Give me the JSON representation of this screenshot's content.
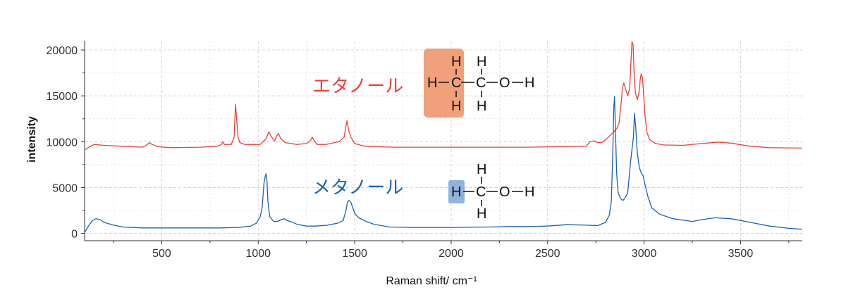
{
  "chart_data": {
    "type": "line",
    "title": "",
    "xlabel": "Raman shift/ cm⁻¹",
    "ylabel": "intensity",
    "xlim": [
      100,
      3820
    ],
    "ylim": [
      -800,
      21000
    ],
    "xticks": [
      500,
      1000,
      1500,
      2000,
      2500,
      3000,
      3500
    ],
    "yticks": [
      0,
      5000,
      10000,
      15000,
      20000
    ],
    "xtick_labels": [
      "500",
      "1000",
      "1500",
      "2000",
      "2500",
      "3000",
      "3500"
    ],
    "ytick_labels": [
      "0",
      "5000",
      "10000",
      "15000",
      "20000"
    ],
    "grid": true,
    "series": [
      {
        "name": "エタノール",
        "color": "#e8423c",
        "points": [
          [
            100,
            9100
          ],
          [
            130,
            9500
          ],
          [
            150,
            9700
          ],
          [
            200,
            9600
          ],
          [
            300,
            9500
          ],
          [
            400,
            9400
          ],
          [
            420,
            9600
          ],
          [
            435,
            9900
          ],
          [
            450,
            9700
          ],
          [
            480,
            9450
          ],
          [
            550,
            9350
          ],
          [
            700,
            9400
          ],
          [
            790,
            9500
          ],
          [
            810,
            9700
          ],
          [
            815,
            10000
          ],
          [
            825,
            9700
          ],
          [
            860,
            9700
          ],
          [
            875,
            10500
          ],
          [
            882,
            14100
          ],
          [
            888,
            12500
          ],
          [
            895,
            10500
          ],
          [
            905,
            9900
          ],
          [
            930,
            9700
          ],
          [
            1010,
            9700
          ],
          [
            1040,
            10300
          ],
          [
            1055,
            11100
          ],
          [
            1070,
            10500
          ],
          [
            1085,
            10100
          ],
          [
            1095,
            10600
          ],
          [
            1105,
            10900
          ],
          [
            1115,
            10400
          ],
          [
            1140,
            9900
          ],
          [
            1200,
            9700
          ],
          [
            1250,
            9800
          ],
          [
            1270,
            10100
          ],
          [
            1280,
            10500
          ],
          [
            1290,
            10100
          ],
          [
            1305,
            9700
          ],
          [
            1350,
            9700
          ],
          [
            1420,
            10000
          ],
          [
            1445,
            10500
          ],
          [
            1452,
            11400
          ],
          [
            1460,
            12300
          ],
          [
            1468,
            11300
          ],
          [
            1480,
            10500
          ],
          [
            1500,
            9800
          ],
          [
            1550,
            9500
          ],
          [
            1700,
            9400
          ],
          [
            2000,
            9400
          ],
          [
            2400,
            9400
          ],
          [
            2700,
            9500
          ],
          [
            2720,
            10000
          ],
          [
            2740,
            10100
          ],
          [
            2760,
            9900
          ],
          [
            2780,
            9900
          ],
          [
            2800,
            10200
          ],
          [
            2840,
            11000
          ],
          [
            2860,
            11500
          ],
          [
            2870,
            12000
          ],
          [
            2880,
            14000
          ],
          [
            2888,
            15900
          ],
          [
            2895,
            16400
          ],
          [
            2905,
            15700
          ],
          [
            2915,
            15000
          ],
          [
            2925,
            15800
          ],
          [
            2930,
            17800
          ],
          [
            2937,
            20900
          ],
          [
            2943,
            20600
          ],
          [
            2948,
            17500
          ],
          [
            2955,
            15300
          ],
          [
            2965,
            14600
          ],
          [
            2975,
            15500
          ],
          [
            2980,
            16800
          ],
          [
            2985,
            17400
          ],
          [
            2992,
            16900
          ],
          [
            2998,
            15000
          ],
          [
            3005,
            12800
          ],
          [
            3015,
            11000
          ],
          [
            3030,
            10200
          ],
          [
            3060,
            9800
          ],
          [
            3100,
            9650
          ],
          [
            3200,
            9600
          ],
          [
            3300,
            9800
          ],
          [
            3380,
            9950
          ],
          [
            3450,
            9850
          ],
          [
            3550,
            9500
          ],
          [
            3650,
            9350
          ],
          [
            3820,
            9300
          ]
        ]
      },
      {
        "name": "メタノール",
        "color": "#1a64b0",
        "points": [
          [
            100,
            100
          ],
          [
            120,
            800
          ],
          [
            140,
            1400
          ],
          [
            160,
            1600
          ],
          [
            180,
            1500
          ],
          [
            200,
            1200
          ],
          [
            250,
            900
          ],
          [
            300,
            700
          ],
          [
            400,
            600
          ],
          [
            500,
            600
          ],
          [
            600,
            600
          ],
          [
            800,
            600
          ],
          [
            900,
            650
          ],
          [
            960,
            800
          ],
          [
            990,
            1100
          ],
          [
            1010,
            1800
          ],
          [
            1020,
            2800
          ],
          [
            1030,
            5500
          ],
          [
            1035,
            6100
          ],
          [
            1040,
            6500
          ],
          [
            1045,
            5800
          ],
          [
            1050,
            3500
          ],
          [
            1060,
            1800
          ],
          [
            1080,
            1300
          ],
          [
            1100,
            1300
          ],
          [
            1120,
            1500
          ],
          [
            1135,
            1600
          ],
          [
            1150,
            1400
          ],
          [
            1180,
            1200
          ],
          [
            1200,
            1000
          ],
          [
            1250,
            800
          ],
          [
            1300,
            800
          ],
          [
            1360,
            900
          ],
          [
            1410,
            1100
          ],
          [
            1440,
            1400
          ],
          [
            1455,
            2500
          ],
          [
            1462,
            3400
          ],
          [
            1470,
            3600
          ],
          [
            1480,
            3400
          ],
          [
            1490,
            2800
          ],
          [
            1500,
            2200
          ],
          [
            1520,
            1700
          ],
          [
            1560,
            1300
          ],
          [
            1600,
            1000
          ],
          [
            1680,
            700
          ],
          [
            1800,
            650
          ],
          [
            2000,
            650
          ],
          [
            2200,
            700
          ],
          [
            2300,
            750
          ],
          [
            2400,
            750
          ],
          [
            2500,
            800
          ],
          [
            2600,
            950
          ],
          [
            2700,
            900
          ],
          [
            2760,
            850
          ],
          [
            2800,
            1200
          ],
          [
            2820,
            2000
          ],
          [
            2830,
            3500
          ],
          [
            2838,
            9000
          ],
          [
            2843,
            13800
          ],
          [
            2847,
            14900
          ],
          [
            2852,
            11000
          ],
          [
            2858,
            6500
          ],
          [
            2865,
            4500
          ],
          [
            2878,
            3800
          ],
          [
            2890,
            3600
          ],
          [
            2900,
            3800
          ],
          [
            2915,
            4400
          ],
          [
            2930,
            7800
          ],
          [
            2945,
            10600
          ],
          [
            2950,
            13100
          ],
          [
            2957,
            11500
          ],
          [
            2965,
            8800
          ],
          [
            2975,
            7200
          ],
          [
            2985,
            6600
          ],
          [
            2995,
            6300
          ],
          [
            3005,
            5300
          ],
          [
            3020,
            4000
          ],
          [
            3040,
            2800
          ],
          [
            3080,
            2100
          ],
          [
            3150,
            1600
          ],
          [
            3250,
            1300
          ],
          [
            3300,
            1500
          ],
          [
            3370,
            1700
          ],
          [
            3450,
            1600
          ],
          [
            3550,
            1200
          ],
          [
            3650,
            800
          ],
          [
            3750,
            550
          ],
          [
            3820,
            450
          ]
        ]
      }
    ],
    "annotations": {
      "ethanol_structure": {
        "atoms": [
          "H",
          "H",
          "H",
          "C",
          "C",
          "H",
          "H",
          "O",
          "H"
        ],
        "highlight_group": "CH3",
        "highlight_color": "#f0a07a"
      },
      "methanol_structure": {
        "atoms": [
          "H",
          "H",
          "H",
          "C",
          "O",
          "H"
        ],
        "highlight_group": "H",
        "highlight_color": "#8fb3dc"
      }
    }
  }
}
